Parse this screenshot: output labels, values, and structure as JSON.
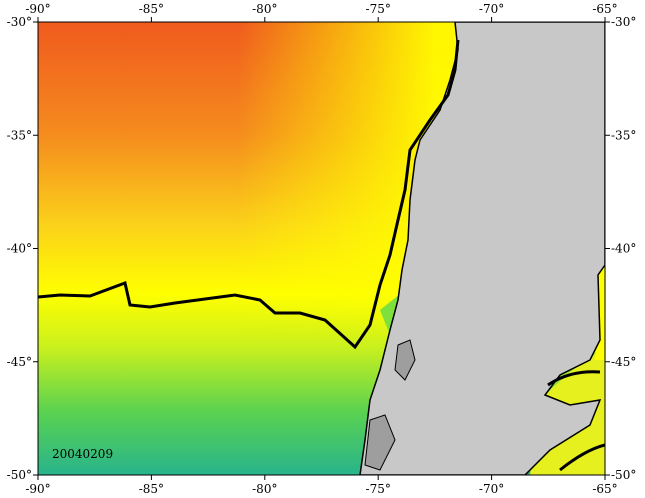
{
  "map": {
    "xlim": [
      -90,
      -65
    ],
    "ylim": [
      -50,
      -30
    ],
    "xticks": [
      {
        "value": -90,
        "label": "-90°"
      },
      {
        "value": -85,
        "label": "-85°"
      },
      {
        "value": -80,
        "label": "-80°"
      },
      {
        "value": -75,
        "label": "-75°"
      },
      {
        "value": -70,
        "label": "-70°"
      },
      {
        "value": -65,
        "label": "-65°"
      }
    ],
    "yticks": [
      {
        "value": -30,
        "label": "-30°"
      },
      {
        "value": -35,
        "label": "-35°"
      },
      {
        "value": -40,
        "label": "-40°"
      },
      {
        "value": -45,
        "label": "-45°"
      },
      {
        "value": -50,
        "label": "-50°"
      }
    ],
    "date_label": "20040209"
  }
}
